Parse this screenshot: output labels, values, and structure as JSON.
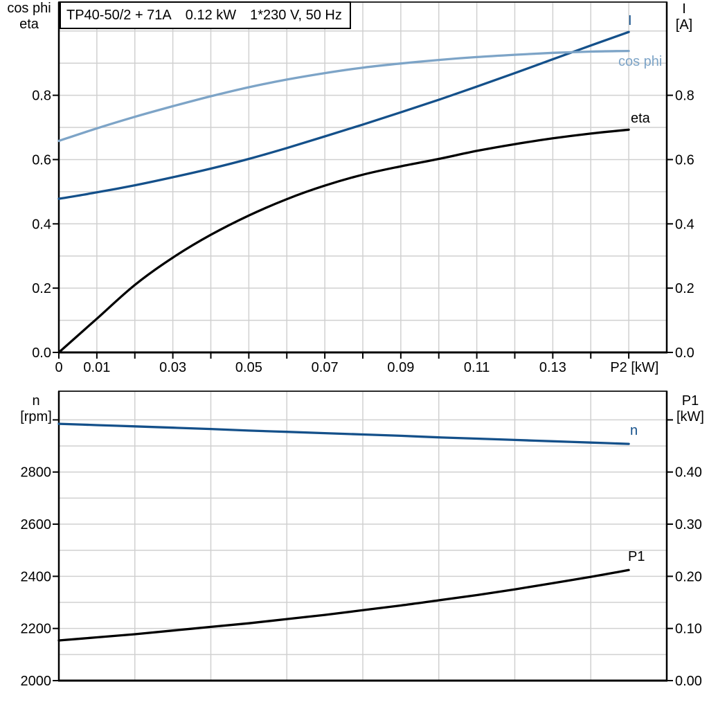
{
  "title_box": {
    "model": "TP40-50/2 + 71A",
    "power": "0.12 kW",
    "supply": "1*230 V, 50 Hz"
  },
  "axis_headers": {
    "top_left_line1": "cos phi",
    "top_left_line2": "eta",
    "top_right_line1": "I",
    "top_right_line2": "[A]",
    "bottom_left_line1": "n",
    "bottom_left_line2": "[rpm]",
    "bottom_right_line1": "P1",
    "bottom_right_line2": "[kW]"
  },
  "curve_labels": {
    "I": "I",
    "cos_phi": "cos phi",
    "eta": "eta",
    "n": "n",
    "P1": "P1"
  },
  "colors": {
    "dark_blue": "#14508a",
    "light_blue": "#7da4c7",
    "black": "#000000",
    "grid": "#d0d0d0",
    "frame": "#000000",
    "frame_top": "#2b2b2b",
    "background": "#ffffff"
  },
  "chart_data": [
    {
      "id": "top",
      "type": "line",
      "title": "TP40-50/2 + 71A  0.12 kW  1*230 V, 50 Hz",
      "xlabel": "P2 [kW]",
      "x_range": [
        0,
        0.16
      ],
      "x_gridlines": [
        0.01,
        0.02,
        0.03,
        0.04,
        0.05,
        0.06,
        0.07,
        0.08,
        0.09,
        0.1,
        0.11,
        0.12,
        0.13,
        0.14,
        0.15
      ],
      "x_ticks": [
        {
          "v": 0,
          "label": "0"
        },
        {
          "v": 0.01,
          "label": "0.01"
        },
        {
          "v": 0.02,
          "label": ""
        },
        {
          "v": 0.03,
          "label": "0.03"
        },
        {
          "v": 0.04,
          "label": ""
        },
        {
          "v": 0.05,
          "label": "0.05"
        },
        {
          "v": 0.06,
          "label": ""
        },
        {
          "v": 0.07,
          "label": "0.07"
        },
        {
          "v": 0.08,
          "label": ""
        },
        {
          "v": 0.09,
          "label": "0.09"
        },
        {
          "v": 0.1,
          "label": ""
        },
        {
          "v": 0.11,
          "label": "0.11"
        },
        {
          "v": 0.12,
          "label": ""
        },
        {
          "v": 0.13,
          "label": "0.13"
        },
        {
          "v": 0.14,
          "label": ""
        },
        {
          "v": 0.15,
          "label": ""
        }
      ],
      "x_axis_label": {
        "v": 0.1515,
        "text": "P2 [kW]"
      },
      "y_left": {
        "range": [
          0,
          1.09
        ],
        "gridlines": [
          0.1,
          0.2,
          0.3,
          0.4,
          0.5,
          0.6,
          0.7,
          0.8,
          0.9,
          1.0
        ],
        "ticks": [
          {
            "v": 0.0,
            "label": "0.0"
          },
          {
            "v": 0.2,
            "label": "0.2"
          },
          {
            "v": 0.4,
            "label": "0.4"
          },
          {
            "v": 0.6,
            "label": "0.6"
          },
          {
            "v": 0.8,
            "label": "0.8"
          }
        ]
      },
      "y_right": {
        "range": [
          0,
          1.09
        ],
        "gridlines": [],
        "ticks": [
          {
            "v": 0.0,
            "label": "0.0"
          },
          {
            "v": 0.2,
            "label": "0.2"
          },
          {
            "v": 0.4,
            "label": "0.4"
          },
          {
            "v": 0.6,
            "label": "0.6"
          },
          {
            "v": 0.8,
            "label": "0.8"
          }
        ]
      },
      "x": [
        0,
        0.01,
        0.02,
        0.03,
        0.04,
        0.05,
        0.06,
        0.07,
        0.08,
        0.09,
        0.1,
        0.11,
        0.12,
        0.13,
        0.14,
        0.15
      ],
      "series": [
        {
          "name": "I",
          "axis": "right",
          "color": "#14508a",
          "width": 3.3,
          "values": [
            0.478,
            0.498,
            0.52,
            0.545,
            0.572,
            0.602,
            0.636,
            0.672,
            0.709,
            0.747,
            0.786,
            0.827,
            0.869,
            0.912,
            0.955,
            0.997
          ]
        },
        {
          "name": "cos phi",
          "axis": "left",
          "color": "#7da4c7",
          "width": 3.3,
          "values": [
            0.658,
            0.697,
            0.733,
            0.766,
            0.797,
            0.825,
            0.849,
            0.869,
            0.886,
            0.899,
            0.91,
            0.919,
            0.926,
            0.932,
            0.936,
            0.938
          ]
        },
        {
          "name": "eta",
          "axis": "left",
          "color": "#000000",
          "width": 3.3,
          "values": [
            0.0,
            0.105,
            0.21,
            0.295,
            0.366,
            0.426,
            0.477,
            0.519,
            0.553,
            0.579,
            0.602,
            0.627,
            0.648,
            0.666,
            0.681,
            0.693
          ]
        }
      ]
    },
    {
      "id": "bottom",
      "type": "line",
      "title": "",
      "xlabel": "",
      "x_range": [
        0,
        0.16
      ],
      "x_gridlines": [
        0.02,
        0.04,
        0.06,
        0.08,
        0.1,
        0.12,
        0.14
      ],
      "x_ticks": [],
      "x_axis_label": null,
      "y_left": {
        "range": [
          2000,
          3110
        ],
        "gridlines": [
          2100,
          2200,
          2300,
          2400,
          2500,
          2600,
          2700,
          2800,
          2900,
          3000
        ],
        "ticks": [
          {
            "v": 2000,
            "label": "2000"
          },
          {
            "v": 2200,
            "label": "2200"
          },
          {
            "v": 2400,
            "label": "2400"
          },
          {
            "v": 2600,
            "label": "2600"
          },
          {
            "v": 2800,
            "label": "2800"
          },
          {
            "v": 3000,
            "label": ""
          }
        ]
      },
      "y_right": {
        "range": [
          0,
          0.555
        ],
        "gridlines": [],
        "ticks": [
          {
            "v": 0.0,
            "label": "0.00"
          },
          {
            "v": 0.1,
            "label": "0.10"
          },
          {
            "v": 0.2,
            "label": "0.20"
          },
          {
            "v": 0.3,
            "label": "0.30"
          },
          {
            "v": 0.4,
            "label": "0.40"
          },
          {
            "v": 0.5,
            "label": ""
          }
        ]
      },
      "x": [
        0,
        0.01,
        0.02,
        0.03,
        0.04,
        0.05,
        0.06,
        0.07,
        0.08,
        0.09,
        0.1,
        0.11,
        0.12,
        0.13,
        0.14,
        0.15
      ],
      "series": [
        {
          "name": "n",
          "axis": "left",
          "color": "#14508a",
          "width": 3.3,
          "values": [
            2985,
            2980,
            2975,
            2970,
            2965,
            2959,
            2954,
            2949,
            2944,
            2939,
            2933,
            2928,
            2923,
            2918,
            2913,
            2908
          ]
        },
        {
          "name": "P1",
          "axis": "right",
          "color": "#000000",
          "width": 3.3,
          "values": [
            0.077,
            0.083,
            0.089,
            0.096,
            0.103,
            0.11,
            0.118,
            0.126,
            0.135,
            0.144,
            0.154,
            0.164,
            0.175,
            0.187,
            0.199,
            0.212
          ]
        }
      ]
    }
  ]
}
